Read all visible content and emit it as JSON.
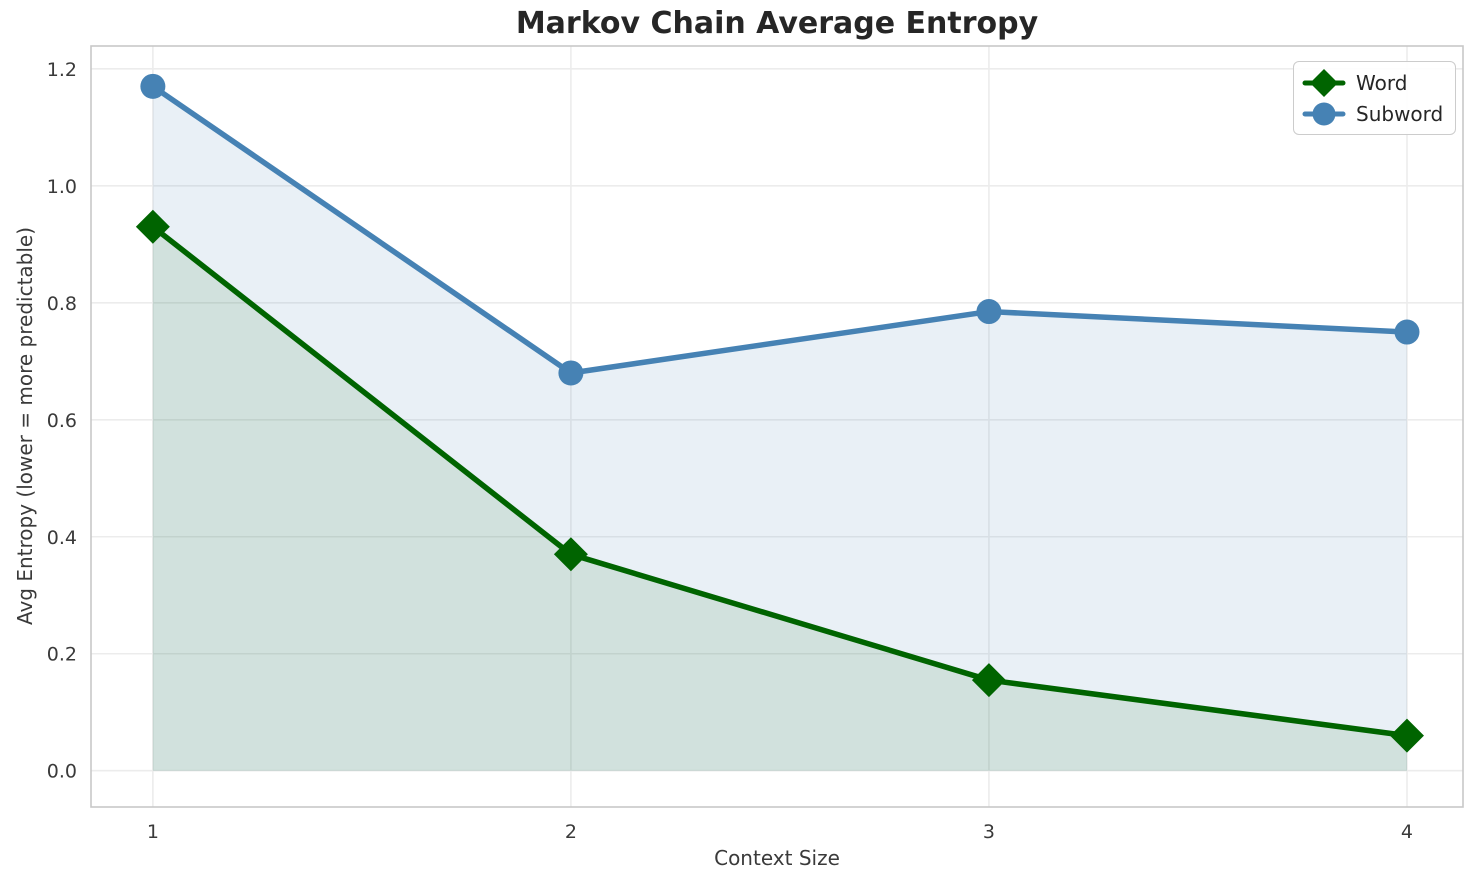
{
  "chart_data": {
    "type": "line",
    "title": "Markov Chain Average Entropy",
    "xlabel": "Context Size",
    "ylabel": "Avg Entropy (lower = more predictable)",
    "x": [
      1,
      2,
      3,
      4
    ],
    "series": [
      {
        "name": "Word",
        "values": [
          0.93,
          0.37,
          0.155,
          0.06
        ],
        "color": "#006400",
        "marker": "diamond",
        "fill": "rgba(0,100,0,0.10)"
      },
      {
        "name": "Subword",
        "values": [
          1.17,
          0.68,
          0.785,
          0.75
        ],
        "color": "#4682B4",
        "marker": "circle",
        "fill": "rgba(70,130,180,0.12)"
      }
    ],
    "xticks": [
      "1",
      "2",
      "3",
      "4"
    ],
    "yticks": [
      "0.0",
      "0.2",
      "0.4",
      "0.6",
      "0.8",
      "1.0",
      "1.2"
    ],
    "xlim": [
      0.852,
      4.134
    ],
    "ylim": [
      -0.062,
      1.239
    ],
    "area_baseline": 0,
    "grid": true,
    "legend_position": "upper right",
    "colors": {
      "grid": "#ececec",
      "spine": "#c8c8c8",
      "tick_text": "#3a3a3a",
      "title_text": "#262626"
    }
  }
}
